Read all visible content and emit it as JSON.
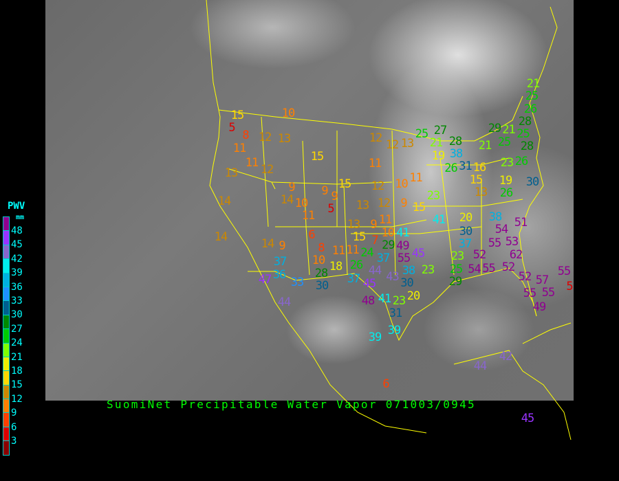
{
  "title": "SuomiNet Precipitable Water Vapor 071003/0945",
  "legend": {
    "title": "PWV",
    "unit": "mm",
    "ticks": [
      "48",
      "45",
      "42",
      "39",
      "36",
      "33",
      "30",
      "27",
      "24",
      "21",
      "18",
      "15",
      "12",
      "9",
      "6",
      "3"
    ],
    "colors": [
      "#900090",
      "#9933ff",
      "#8866cc",
      "#00eeee",
      "#00b0e0",
      "#1e90ff",
      "#005f8f",
      "#008800",
      "#00cc00",
      "#80ff00",
      "#eeee00",
      "#ffd700",
      "#cc8800",
      "#ff8000",
      "#ff4000",
      "#dd0000",
      "#8b0000"
    ]
  },
  "map": {
    "background": "grayscale satellite image",
    "border_color": "#ffff00"
  },
  "stations": [
    10,
    15,
    5,
    8,
    12,
    13,
    11,
    15,
    11,
    12,
    13,
    9,
    14,
    10,
    11,
    9,
    9,
    5,
    15,
    12,
    12,
    13,
    11,
    12,
    10,
    11,
    13,
    12,
    9,
    15,
    23,
    14,
    14,
    14,
    9,
    6,
    13,
    9,
    11,
    15,
    7,
    10,
    41,
    29,
    49,
    55,
    45,
    8,
    10,
    11,
    11,
    24,
    37,
    18,
    26,
    37,
    36,
    47,
    33,
    28,
    30,
    44,
    37,
    45,
    43,
    30,
    38,
    23,
    44,
    48,
    41,
    23,
    20,
    31,
    39,
    39,
    41,
    20,
    30,
    38,
    51,
    54,
    55,
    53,
    37,
    23,
    52,
    25,
    29,
    54,
    55,
    62,
    52,
    52,
    57,
    55,
    55,
    49,
    55,
    5,
    25,
    27,
    21,
    19,
    28,
    38,
    26,
    31,
    16,
    15,
    13,
    21,
    29,
    25,
    21,
    25,
    28,
    26,
    25,
    21,
    28,
    26,
    23,
    19,
    26,
    30,
    44,
    42,
    6,
    45
  ]
}
